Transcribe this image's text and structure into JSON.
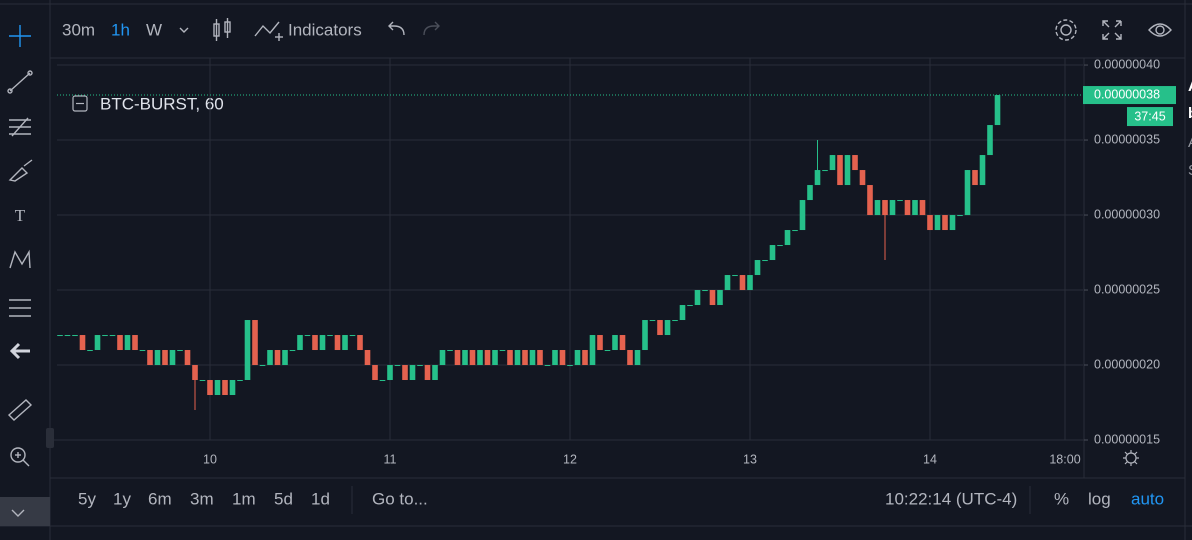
{
  "toolbar": {
    "intervals": [
      "30m",
      "1h",
      "W"
    ],
    "indicators": "Indicators"
  },
  "symbol": "BTC-BURST, 60",
  "chart_data": {
    "type": "candlestick",
    "x": [
      -20,
      -19,
      -18,
      -17,
      -16,
      -15,
      -14,
      -13,
      -12,
      -11,
      -10,
      -9,
      -8,
      -7,
      -6,
      -5,
      -4,
      -3,
      -2,
      -1,
      0,
      1,
      2,
      3,
      4,
      5,
      6,
      7,
      8,
      9,
      10,
      11,
      12,
      13,
      14,
      15,
      16,
      17,
      18,
      19,
      20,
      21,
      22,
      23,
      24,
      25,
      26,
      27,
      28,
      29,
      30,
      31,
      32,
      33,
      34,
      35,
      36,
      37,
      38,
      39,
      40,
      41,
      42,
      43,
      44,
      45,
      46,
      47,
      48,
      49,
      50,
      51,
      52,
      53,
      54,
      55,
      56,
      57,
      58,
      59,
      60,
      61,
      62,
      63,
      64,
      65,
      66,
      67,
      68,
      69,
      70,
      71,
      72,
      73,
      74,
      75,
      76,
      77,
      78,
      79,
      80,
      81,
      82,
      83,
      84,
      85,
      86,
      87,
      88,
      89,
      90,
      91,
      92,
      93,
      94,
      95,
      96,
      97,
      98,
      99,
      100,
      101,
      102,
      103,
      104,
      105
    ],
    "open": [
      2.2e-07,
      2.2e-07,
      2.2e-07,
      2.2e-07,
      2.1e-07,
      2.1e-07,
      2.2e-07,
      2.2e-07,
      2.2e-07,
      2.1e-07,
      2.2e-07,
      2.1e-07,
      2.1e-07,
      2e-07,
      2.1e-07,
      2e-07,
      2.1e-07,
      2.1e-07,
      2e-07,
      1.9e-07,
      1.9e-07,
      1.8e-07,
      1.9e-07,
      1.8e-07,
      1.9e-07,
      1.9e-07,
      2.3e-07,
      2e-07,
      2e-07,
      2.1e-07,
      2e-07,
      2.1e-07,
      2.1e-07,
      2.2e-07,
      2.2e-07,
      2.1e-07,
      2.2e-07,
      2.2e-07,
      2.1e-07,
      2.2e-07,
      2.2e-07,
      2.1e-07,
      2e-07,
      1.9e-07,
      1.9e-07,
      2e-07,
      2e-07,
      1.9e-07,
      2e-07,
      2e-07,
      1.9e-07,
      2e-07,
      2.1e-07,
      2.1e-07,
      2e-07,
      2.1e-07,
      2e-07,
      2.1e-07,
      2e-07,
      2.1e-07,
      2.1e-07,
      2e-07,
      2.1e-07,
      2e-07,
      2.1e-07,
      2e-07,
      2e-07,
      2.1e-07,
      2e-07,
      2e-07,
      2.1e-07,
      2e-07,
      2.2e-07,
      2.1e-07,
      2.1e-07,
      2.2e-07,
      2.1e-07,
      2e-07,
      2.1e-07,
      2.3e-07,
      2.3e-07,
      2.2e-07,
      2.3e-07,
      2.3e-07,
      2.4e-07,
      2.4e-07,
      2.5e-07,
      2.5e-07,
      2.4e-07,
      2.5e-07,
      2.6e-07,
      2.6e-07,
      2.5e-07,
      2.6e-07,
      2.7e-07,
      2.7e-07,
      2.8e-07,
      2.8e-07,
      2.9e-07,
      2.9e-07,
      3.1e-07,
      3.2e-07,
      3.3e-07,
      3.3e-07,
      3.4e-07,
      3.2e-07,
      3.4e-07,
      3.3e-07,
      3.2e-07,
      3e-07,
      3.1e-07,
      3e-07,
      3.1e-07,
      3.1e-07,
      3e-07,
      3.1e-07,
      3e-07,
      2.9e-07,
      3e-07,
      2.9e-07,
      3e-07,
      3e-07,
      3.3e-07,
      3.2e-07,
      3.4e-07,
      3.6e-07
    ],
    "high": [
      2.2e-07,
      2.2e-07,
      2.2e-07,
      2.2e-07,
      2.1e-07,
      2.2e-07,
      2.2e-07,
      2.2e-07,
      2.2e-07,
      2.2e-07,
      2.2e-07,
      2.1e-07,
      2.1e-07,
      2.1e-07,
      2.1e-07,
      2.1e-07,
      2.1e-07,
      2.1e-07,
      2e-07,
      1.9e-07,
      1.9e-07,
      1.9e-07,
      1.9e-07,
      1.9e-07,
      1.9e-07,
      2.3e-07,
      2.3e-07,
      2e-07,
      2.1e-07,
      2.1e-07,
      2.1e-07,
      2.1e-07,
      2.2e-07,
      2.2e-07,
      2.2e-07,
      2.2e-07,
      2.2e-07,
      2.2e-07,
      2.2e-07,
      2.2e-07,
      2.2e-07,
      2.1e-07,
      2e-07,
      1.9e-07,
      2e-07,
      2e-07,
      2e-07,
      2e-07,
      2e-07,
      2e-07,
      2e-07,
      2.1e-07,
      2.1e-07,
      2.1e-07,
      2.1e-07,
      2.1e-07,
      2.1e-07,
      2.1e-07,
      2.1e-07,
      2.1e-07,
      2.1e-07,
      2.1e-07,
      2.1e-07,
      2.1e-07,
      2.1e-07,
      2e-07,
      2.1e-07,
      2.1e-07,
      2e-07,
      2.1e-07,
      2.1e-07,
      2.2e-07,
      2.2e-07,
      2.1e-07,
      2.2e-07,
      2.2e-07,
      2.1e-07,
      2.1e-07,
      2.3e-07,
      2.3e-07,
      2.3e-07,
      2.3e-07,
      2.3e-07,
      2.4e-07,
      2.4e-07,
      2.5e-07,
      2.5e-07,
      2.5e-07,
      2.5e-07,
      2.6e-07,
      2.6e-07,
      2.6e-07,
      2.6e-07,
      2.7e-07,
      2.7e-07,
      2.8e-07,
      2.8e-07,
      2.9e-07,
      2.9e-07,
      3.1e-07,
      3.2e-07,
      3.5e-07,
      3.3e-07,
      3.4e-07,
      3.4e-07,
      3.4e-07,
      3.4e-07,
      3.3e-07,
      3.2e-07,
      3.1e-07,
      3.1e-07,
      3.1e-07,
      3.1e-07,
      3.1e-07,
      3.1e-07,
      3.1e-07,
      3e-07,
      3e-07,
      3e-07,
      3e-07,
      3e-07,
      3.3e-07,
      3.3e-07,
      3.4e-07,
      3.6e-07,
      3.8e-07
    ],
    "low": [
      2.2e-07,
      2.2e-07,
      2.2e-07,
      2.1e-07,
      2.1e-07,
      2.1e-07,
      2.2e-07,
      2.2e-07,
      2.1e-07,
      2.1e-07,
      2.1e-07,
      2.1e-07,
      2e-07,
      2e-07,
      2e-07,
      2e-07,
      2.1e-07,
      2e-07,
      1.7e-07,
      1.9e-07,
      1.8e-07,
      1.8e-07,
      1.8e-07,
      1.8e-07,
      1.9e-07,
      1.9e-07,
      2e-07,
      2e-07,
      2e-07,
      2e-07,
      2e-07,
      2.1e-07,
      2.1e-07,
      2.2e-07,
      2.1e-07,
      2.1e-07,
      2.2e-07,
      2.1e-07,
      2.1e-07,
      2.2e-07,
      2.1e-07,
      2e-07,
      1.9e-07,
      1.9e-07,
      1.9e-07,
      2e-07,
      1.9e-07,
      1.9e-07,
      2e-07,
      1.9e-07,
      1.9e-07,
      2e-07,
      2.1e-07,
      2e-07,
      2e-07,
      2e-07,
      2e-07,
      2e-07,
      2e-07,
      2.1e-07,
      2e-07,
      2e-07,
      2e-07,
      2e-07,
      2e-07,
      2e-07,
      2e-07,
      2e-07,
      2e-07,
      2e-07,
      2e-07,
      2e-07,
      2.1e-07,
      2.1e-07,
      2.1e-07,
      2.1e-07,
      2e-07,
      2e-07,
      2.1e-07,
      2.3e-07,
      2.2e-07,
      2.2e-07,
      2.3e-07,
      2.3e-07,
      2.4e-07,
      2.4e-07,
      2.5e-07,
      2.4e-07,
      2.4e-07,
      2.5e-07,
      2.6e-07,
      2.5e-07,
      2.5e-07,
      2.6e-07,
      2.7e-07,
      2.7e-07,
      2.8e-07,
      2.8e-07,
      2.9e-07,
      2.9e-07,
      3.1e-07,
      3.2e-07,
      3.3e-07,
      3.3e-07,
      3.2e-07,
      3.2e-07,
      3.3e-07,
      3.2e-07,
      3e-07,
      3e-07,
      2.7e-07,
      3e-07,
      3.1e-07,
      3e-07,
      3e-07,
      3e-07,
      2.9e-07,
      2.9e-07,
      2.9e-07,
      2.9e-07,
      3e-07,
      3e-07,
      3.2e-07,
      3.2e-07,
      3.4e-07,
      3.6e-07
    ],
    "close": [
      2.2e-07,
      2.2e-07,
      2.2e-07,
      2.1e-07,
      2.1e-07,
      2.2e-07,
      2.2e-07,
      2.2e-07,
      2.1e-07,
      2.2e-07,
      2.1e-07,
      2.1e-07,
      2e-07,
      2.1e-07,
      2e-07,
      2.1e-07,
      2.1e-07,
      2e-07,
      1.9e-07,
      1.9e-07,
      1.8e-07,
      1.9e-07,
      1.8e-07,
      1.9e-07,
      1.9e-07,
      2.3e-07,
      2e-07,
      2e-07,
      2.1e-07,
      2e-07,
      2.1e-07,
      2.1e-07,
      2.2e-07,
      2.2e-07,
      2.1e-07,
      2.2e-07,
      2.2e-07,
      2.1e-07,
      2.2e-07,
      2.2e-07,
      2.1e-07,
      2e-07,
      1.9e-07,
      1.9e-07,
      2e-07,
      2e-07,
      1.9e-07,
      2e-07,
      2e-07,
      1.9e-07,
      2e-07,
      2.1e-07,
      2.1e-07,
      2e-07,
      2.1e-07,
      2e-07,
      2.1e-07,
      2e-07,
      2.1e-07,
      2.1e-07,
      2e-07,
      2.1e-07,
      2e-07,
      2.1e-07,
      2e-07,
      2e-07,
      2.1e-07,
      2e-07,
      2e-07,
      2.1e-07,
      2e-07,
      2.2e-07,
      2.1e-07,
      2.1e-07,
      2.2e-07,
      2.1e-07,
      2e-07,
      2.1e-07,
      2.3e-07,
      2.3e-07,
      2.2e-07,
      2.3e-07,
      2.3e-07,
      2.4e-07,
      2.4e-07,
      2.5e-07,
      2.5e-07,
      2.4e-07,
      2.5e-07,
      2.6e-07,
      2.6e-07,
      2.5e-07,
      2.6e-07,
      2.7e-07,
      2.7e-07,
      2.8e-07,
      2.8e-07,
      2.9e-07,
      2.9e-07,
      3.1e-07,
      3.2e-07,
      3.3e-07,
      3.3e-07,
      3.4e-07,
      3.2e-07,
      3.4e-07,
      3.3e-07,
      3.2e-07,
      3e-07,
      3.1e-07,
      3e-07,
      3.1e-07,
      3.1e-07,
      3e-07,
      3.1e-07,
      3e-07,
      2.9e-07,
      3e-07,
      2.9e-07,
      3e-07,
      3e-07,
      3.3e-07,
      3.2e-07,
      3.4e-07,
      3.6e-07,
      3.8e-07
    ],
    "up_color": "#26c08a",
    "down_color": "#e4624f",
    "xlim": [
      -20.4,
      116.4
    ],
    "xticks": [
      {
        "value": 0,
        "label": "10"
      },
      {
        "value": 24,
        "label": "11"
      },
      {
        "value": 48,
        "label": "12"
      },
      {
        "value": 72,
        "label": "13"
      },
      {
        "value": 96,
        "label": "14"
      },
      {
        "value": 114,
        "label": "18:00"
      }
    ],
    "ylim": [
      1.5e-07,
      4.047e-07
    ],
    "yticks": [
      {
        "value": 4e-07,
        "label": "0.00000040"
      },
      {
        "value": 3.5e-07,
        "label": "0.00000035"
      },
      {
        "value": 3e-07,
        "label": "0.00000030"
      },
      {
        "value": 2.5e-07,
        "label": "0.00000025"
      },
      {
        "value": 2e-07,
        "label": "0.00000020"
      },
      {
        "value": 1.5e-07,
        "label": "0.00000015"
      }
    ],
    "grid": true,
    "last_price": {
      "value": 3.8e-07,
      "label": "0.00000038"
    },
    "countdown": "37:45"
  },
  "range_bar": {
    "ranges": [
      "5y",
      "1y",
      "6m",
      "3m",
      "1m",
      "5d",
      "1d"
    ],
    "goto": "Go to...",
    "clock": "10:22:14 (UTC-4)",
    "options": [
      "%",
      "log",
      "auto"
    ]
  },
  "side_fragments": [
    "A",
    "b",
    "A",
    "S"
  ]
}
